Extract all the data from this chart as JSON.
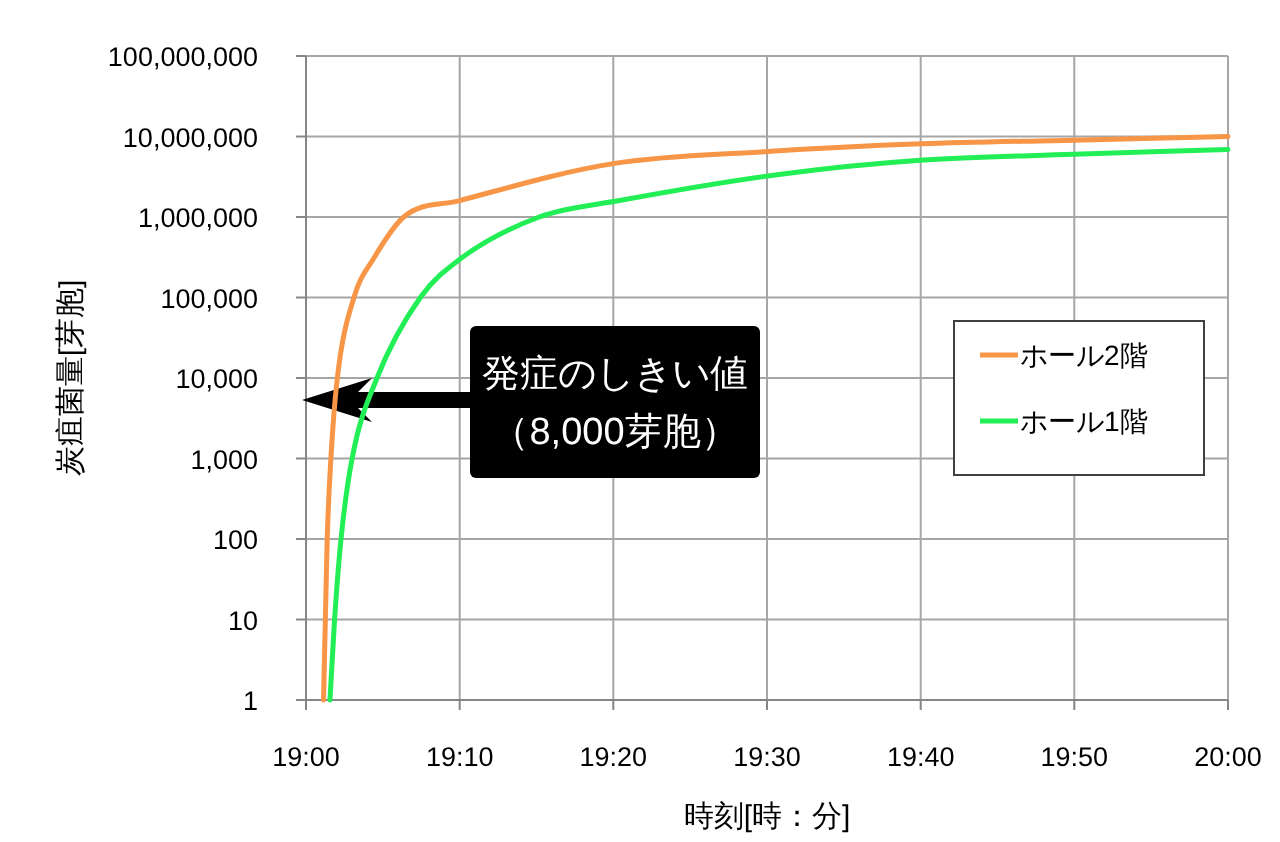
{
  "chart_data": {
    "type": "line",
    "xlabel": "時刻[時：分]",
    "ylabel": "炭疽菌量[芽胞]",
    "log": "y",
    "grid": true,
    "legend": "right",
    "marker": "none",
    "line_style": "solid",
    "xlim": [
      19,
      20
    ],
    "xticks": [
      {
        "value": 19,
        "label": "19:00"
      },
      {
        "value": 19.1667,
        "label": "19:10"
      },
      {
        "value": 19.3333,
        "label": "19:20"
      },
      {
        "value": 19.5,
        "label": "19:30"
      },
      {
        "value": 19.6667,
        "label": "19:40"
      },
      {
        "value": 19.8333,
        "label": "19:50"
      },
      {
        "value": 20,
        "label": "20:00"
      }
    ],
    "ylim": [
      1,
      100000000
    ],
    "yticks": [
      1,
      10,
      100,
      {
        "value": 1000,
        "label": "1,000"
      },
      {
        "value": 10000,
        "label": "10,000"
      },
      {
        "value": 100000,
        "label": "100,000"
      },
      {
        "value": 1000000,
        "label": "1,000,000"
      },
      {
        "value": 10000000,
        "label": "10,000,000"
      },
      {
        "value": 100000000,
        "label": "100,000,000"
      }
    ],
    "series": [
      {
        "name": "ホール2階",
        "color": "#f79646",
        "x": [
          19.019,
          19.021,
          19.023,
          19.027,
          19.034,
          19.052,
          19.073,
          19.106,
          19.167,
          19.333,
          19.5,
          19.667,
          19.833,
          20
        ],
        "values": [
          1,
          10,
          100,
          1000,
          10000,
          100000,
          300000,
          1000000,
          1600000,
          4600000,
          6500000,
          8100000,
          9000000,
          10000000
        ]
      },
      {
        "name": "ホール1階",
        "color": "#22ee55",
        "x": [
          19.026,
          19.031,
          19.038,
          19.05,
          19.077,
          19.124,
          19.167,
          19.253,
          19.34,
          19.515,
          19.67,
          19.833,
          20
        ],
        "values": [
          1,
          10,
          100,
          1000,
          10000,
          100000,
          300000,
          1000000,
          1600000,
          3400000,
          5100000,
          6000000,
          6900000
        ]
      }
    ],
    "annotations": [
      "発症のしきい値",
      "（8,000芽胞）"
    ]
  }
}
